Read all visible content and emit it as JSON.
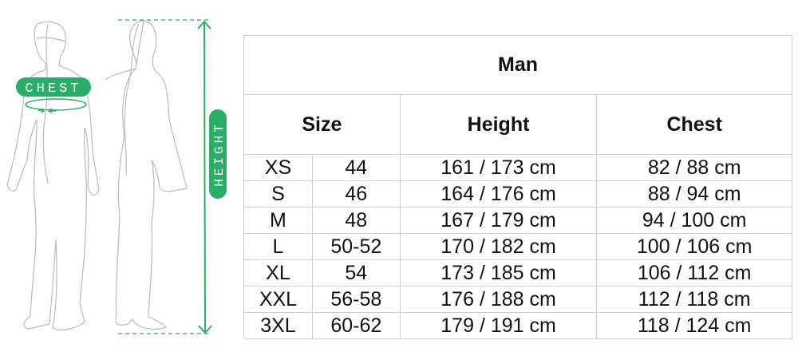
{
  "illustration": {
    "chest_label": "CHEST",
    "height_label": "HEIGHT",
    "accent_color": "#2aae67"
  },
  "table": {
    "title": "Man",
    "headers": {
      "size": "Size",
      "height": "Height",
      "chest": "Chest"
    },
    "rows": [
      {
        "size": "XS",
        "eu": "44",
        "height": "161 / 173 cm",
        "chest": "82 / 88 cm"
      },
      {
        "size": "S",
        "eu": "46",
        "height": "164 / 176 cm",
        "chest": "88 / 94 cm"
      },
      {
        "size": "M",
        "eu": "48",
        "height": "167 / 179 cm",
        "chest": "94 / 100 cm"
      },
      {
        "size": "L",
        "eu": "50-52",
        "height": "170 / 182 cm",
        "chest": "100 / 106 cm"
      },
      {
        "size": "XL",
        "eu": "54",
        "height": "173 / 185 cm",
        "chest": "106 / 112 cm"
      },
      {
        "size": "XXL",
        "eu": "56-58",
        "height": "176 / 188 cm",
        "chest": "112 / 118 cm"
      },
      {
        "size": "3XL",
        "eu": "60-62",
        "height": "179 / 191 cm",
        "chest": "118 / 124 cm"
      }
    ]
  }
}
